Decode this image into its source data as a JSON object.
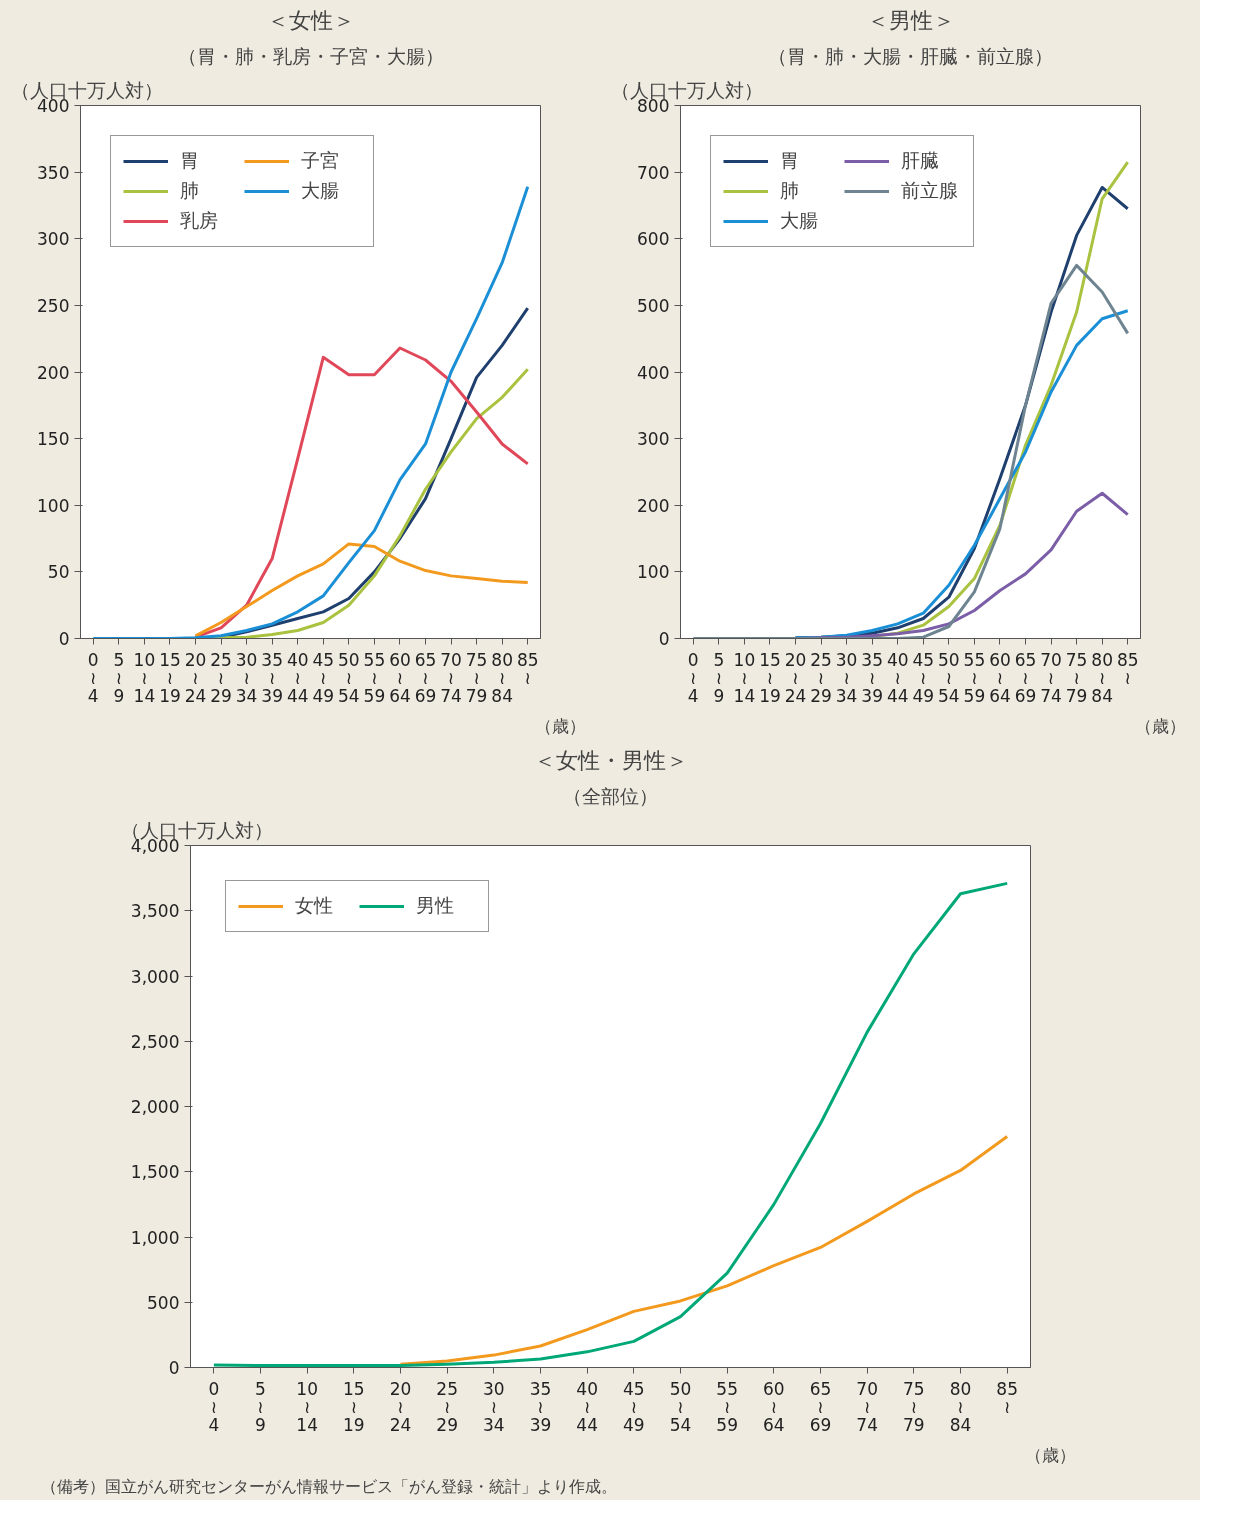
{
  "chart_data": [
    {
      "type": "line",
      "title": "＜女性＞",
      "subtitle": "（胃・肺・乳房・子宮・大腸）",
      "ylabel": "（人口十万人対）",
      "xlabel": "（歳）",
      "categories": [
        "0\n≀\n4",
        "5\n≀\n9",
        "10\n≀\n14",
        "15\n≀\n19",
        "20\n≀\n24",
        "25\n≀\n29",
        "30\n≀\n34",
        "35\n≀\n39",
        "40\n≀\n44",
        "45\n≀\n49",
        "50\n≀\n54",
        "55\n≀\n59",
        "60\n≀\n64",
        "65\n≀\n69",
        "70\n≀\n74",
        "75\n≀\n79",
        "80\n≀\n84",
        "85\n≀"
      ],
      "ylim": [
        0,
        400
      ],
      "yticks": [
        0,
        50,
        100,
        150,
        200,
        250,
        300,
        350,
        400
      ],
      "legend": "top left",
      "series": [
        {
          "name": "胃",
          "color": "#1f3f6e",
          "values": [
            null,
            null,
            null,
            null,
            0.5,
            1,
            5,
            10,
            15,
            20,
            30,
            50,
            75,
            105,
            150,
            196,
            220,
            248
          ]
        },
        {
          "name": "肺",
          "color": "#a9c23f",
          "values": [
            null,
            null,
            null,
            null,
            0,
            0.5,
            1,
            3,
            6,
            12,
            25,
            47,
            77,
            112,
            140,
            165,
            181,
            202
          ]
        },
        {
          "name": "乳房",
          "color": "#e0485a",
          "values": [
            null,
            null,
            null,
            null,
            1,
            8,
            25,
            60,
            135,
            211,
            198,
            198,
            218,
            209,
            193,
            170,
            146,
            131
          ]
        },
        {
          "name": "子宮",
          "color": "#f39a1e",
          "values": [
            null,
            null,
            null,
            null,
            2,
            12,
            24,
            36,
            47,
            56,
            71,
            69,
            58,
            51,
            47,
            45,
            43,
            42
          ]
        },
        {
          "name": "大腸",
          "color": "#1a8fd6",
          "values": [
            0,
            0,
            0,
            0,
            0.5,
            2,
            6,
            11,
            20,
            32,
            57,
            81,
            119,
            146,
            200,
            240,
            282,
            339
          ]
        }
      ]
    },
    {
      "type": "line",
      "title": "＜男性＞",
      "subtitle": "（胃・肺・大腸・肝臓・前立腺）",
      "ylabel": "（人口十万人対）",
      "xlabel": "（歳）",
      "categories": [
        "0\n≀\n4",
        "5\n≀\n9",
        "10\n≀\n14",
        "15\n≀\n19",
        "20\n≀\n24",
        "25\n≀\n29",
        "30\n≀\n34",
        "35\n≀\n39",
        "40\n≀\n44",
        "45\n≀\n49",
        "50\n≀\n54",
        "55\n≀\n59",
        "60\n≀\n64",
        "65\n≀\n69",
        "70\n≀\n74",
        "75\n≀\n79",
        "80\n≀\n84",
        "85\n≀"
      ],
      "ylim": [
        0,
        800
      ],
      "yticks": [
        0,
        100,
        200,
        300,
        400,
        500,
        600,
        700,
        800
      ],
      "legend": "top left",
      "series": [
        {
          "name": "胃",
          "color": "#1f3f6e",
          "values": [
            null,
            null,
            null,
            null,
            1,
            2,
            4,
            8,
            16,
            30,
            62,
            135,
            240,
            350,
            490,
            605,
            677,
            645
          ]
        },
        {
          "name": "肺",
          "color": "#a9c23f",
          "values": [
            null,
            null,
            null,
            null,
            null,
            null,
            null,
            3,
            8,
            20,
            48,
            90,
            170,
            290,
            380,
            490,
            660,
            715
          ]
        },
        {
          "name": "大腸",
          "color": "#1a8fd6",
          "values": [
            null,
            null,
            null,
            null,
            1,
            2,
            5,
            12,
            22,
            38,
            80,
            140,
            210,
            280,
            370,
            440,
            480,
            492
          ]
        },
        {
          "name": "肝臓",
          "color": "#7b5ea7",
          "values": [
            null,
            null,
            null,
            null,
            0,
            1,
            2,
            4,
            7,
            12,
            22,
            42,
            72,
            97,
            133,
            191,
            218,
            186
          ]
        },
        {
          "name": "前立腺",
          "color": "#6e8591",
          "values": [
            0,
            0,
            0,
            0,
            0,
            0,
            0,
            0,
            0,
            2,
            18,
            70,
            165,
            350,
            503,
            560,
            520,
            458
          ]
        }
      ]
    },
    {
      "type": "line",
      "title": "＜女性・男性＞",
      "subtitle": "（全部位）",
      "ylabel": "（人口十万人対）",
      "xlabel": "（歳）",
      "categories": [
        "0\n≀\n4",
        "5\n≀\n9",
        "10\n≀\n14",
        "15\n≀\n19",
        "20\n≀\n24",
        "25\n≀\n29",
        "30\n≀\n34",
        "35\n≀\n39",
        "40\n≀\n44",
        "45\n≀\n49",
        "50\n≀\n54",
        "55\n≀\n59",
        "60\n≀\n64",
        "65\n≀\n69",
        "70\n≀\n74",
        "75\n≀\n79",
        "80\n≀\n84",
        "85\n≀"
      ],
      "ylim": [
        0,
        4000
      ],
      "yticks": [
        0,
        {
          "value": 500,
          "label": "500"
        },
        {
          "value": 1000,
          "label": "1,000"
        },
        {
          "value": 1500,
          "label": "1,500"
        },
        {
          "value": 2000,
          "label": "2,000"
        },
        {
          "value": 2500,
          "label": "2,500"
        },
        {
          "value": 3000,
          "label": "3,000"
        },
        {
          "value": 3500,
          "label": "3,500"
        },
        {
          "value": 4000,
          "label": "4,000"
        }
      ],
      "legend": "top left",
      "annotations": [
        "（備考）国立がん研究センターがん情報サービス「がん登録・統計」より作成。"
      ],
      "series": [
        {
          "name": "女性",
          "color": "#f39a1e",
          "values": [
            null,
            null,
            null,
            null,
            25,
            50,
            95,
            165,
            290,
            430,
            510,
            626,
            780,
            920,
            1120,
            1330,
            1510,
            1770
          ]
        },
        {
          "name": "男性",
          "color": "#00a878",
          "values": [
            20,
            15,
            15,
            15,
            15,
            25,
            40,
            65,
            120,
            200,
            390,
            723,
            1250,
            1870,
            2570,
            3170,
            3630,
            3710
          ]
        }
      ]
    }
  ]
}
